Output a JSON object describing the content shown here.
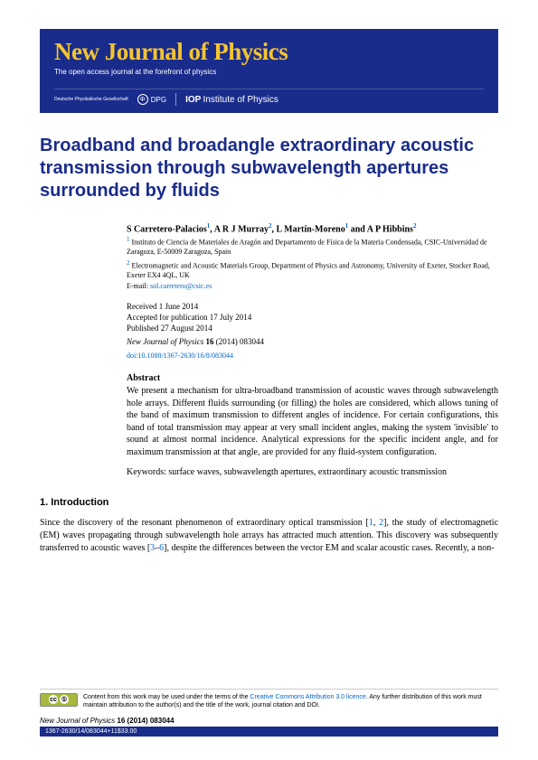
{
  "banner": {
    "title": "New Journal of Physics",
    "subtitle": "The open access journal at the forefront of physics",
    "dpg_text": "Deutsche Physikalische Gesellschaft",
    "dpg": "DPG",
    "iop": "IOP",
    "institute": "Institute of Physics"
  },
  "article": {
    "title": "Broadband and broadangle extraordinary acoustic transmission through subwavelength apertures surrounded by fluids"
  },
  "authors": {
    "a1": "S Carretero-Palacios",
    "a2": "A R J Murray",
    "a3": "L Martín-Moreno",
    "a4": "A P Hibbins",
    "and": " and ",
    "sep": ", "
  },
  "affiliations": {
    "a1": "Instituto de Ciencia de Materiales de Aragón and Departamento de Física de la Materia Condensada, CSIC-Universidad de Zaragoza, E-50009 Zaragoza, Spain",
    "a2": "Electromagnetic and Acoustic Materials Group, Department of Physics and Astronomy, University of Exeter, Stocker Road, Exeter EX4 4QL, UK",
    "email_label": "E-mail: ",
    "email": "sol.carretero@csic.es"
  },
  "dates": {
    "received": "Received 1 June 2014",
    "accepted": "Accepted for publication 17 July 2014",
    "published": "Published 27 August 2014"
  },
  "citation": {
    "journal": "New Journal of Physics",
    "vol": " 16 ",
    "rest": "(2014) 083044",
    "doi_label": "doi:",
    "doi": "10.1088/1367-2630/16/8/083044"
  },
  "abstract": {
    "head": "Abstract",
    "body": "We present a mechanism for ultra-broadband transmission of acoustic waves through subwavelength hole arrays. Different fluids surrounding (or filling) the holes are considered, which allows tuning of the band of maximum transmission to different angles of incidence. For certain configurations, this band of total transmission may appear at very small incident angles, making the system 'invisible' to sound at almost normal incidence. Analytical expressions for the specific incident angle, and for maximum transmission at that angle, are provided for any fluid-system configuration."
  },
  "keywords": {
    "text": "Keywords: surface waves, subwavelength apertures, extraordinary acoustic transmission"
  },
  "section1": {
    "head": "1. Introduction",
    "p1a": "Since the discovery of the resonant phenomenon of extraordinary optical transmission [",
    "r1": "1",
    "p1b": ", ",
    "r2": "2",
    "p1c": "], the study of electromagnetic (EM) waves propagating through subwavelength hole arrays has attracted much attention. This discovery was subsequently transferred to acoustic waves [",
    "r3": "3",
    "p1d": "–",
    "r6": "6",
    "p1e": "], despite the differences between the vector EM and scalar acoustic cases. Recently, a non-"
  },
  "license": {
    "text1": "Content from this work may be used under the terms of the ",
    "link": "Creative Commons Attribution 3.0 licence",
    "text2": ". Any further distribution of this work must maintain attribution to the author(s) and the title of the work, journal citation and DOI."
  },
  "footer": {
    "cite_journal": "New Journal of Physics",
    "cite_rest": " 16 (2014) 083044",
    "bar": "1367-2630/14/083044+11$33.00"
  }
}
